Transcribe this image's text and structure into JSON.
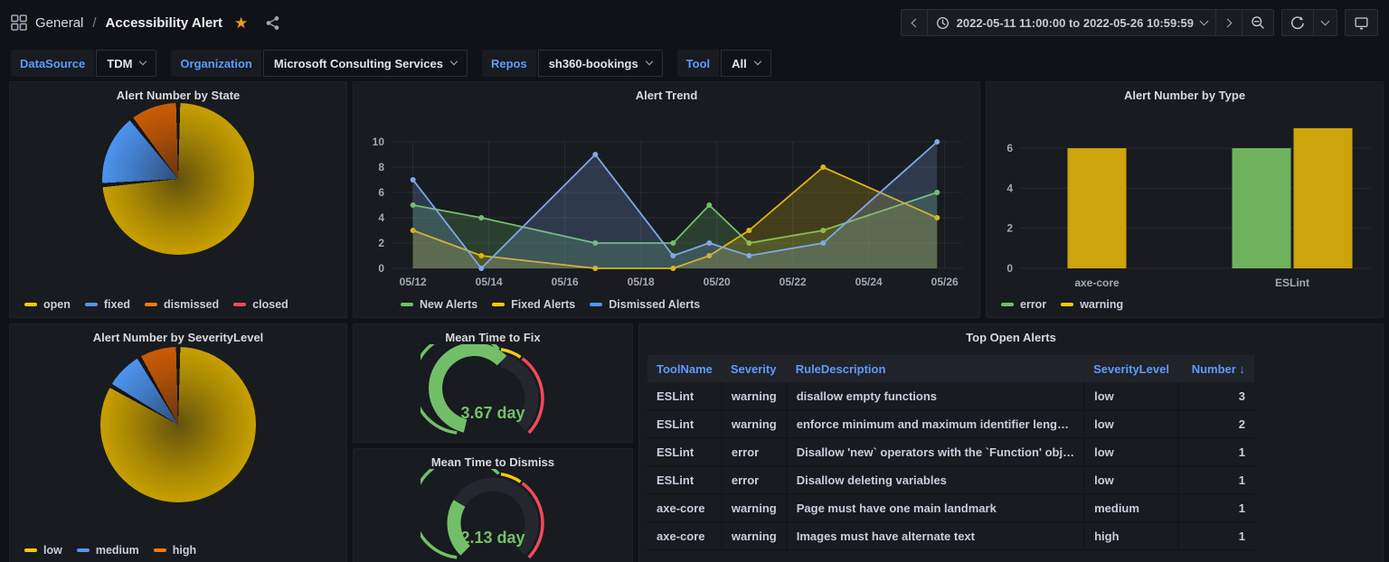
{
  "nav": {
    "breadcrumb": {
      "section": "General",
      "separator": "/",
      "page": "Accessibility Alert"
    },
    "time_range": "2022-05-11 11:00:00 to 2022-05-26 10:59:59",
    "icons": [
      "apps-grid",
      "star",
      "share",
      "chevron-left",
      "clock",
      "chevron-down",
      "chevron-right",
      "zoom-out",
      "refresh",
      "kiosk-monitor"
    ]
  },
  "filters": [
    {
      "label": "DataSource",
      "value": "TDM"
    },
    {
      "label": "Organization",
      "value": "Microsoft Consulting Services"
    },
    {
      "label": "Repos",
      "value": "sh360-bookings"
    },
    {
      "label": "Tool",
      "value": "All"
    }
  ],
  "panels": {
    "pie_state": {
      "title": "Alert Number by State",
      "legend": [
        {
          "label": "open",
          "color": "#F2CC0C"
        },
        {
          "label": "fixed",
          "color": "#5794F2"
        },
        {
          "label": "dismissed",
          "color": "#FF780A"
        },
        {
          "label": "closed",
          "color": "#F2495C"
        }
      ]
    },
    "trend": {
      "title": "Alert Trend",
      "legend": [
        {
          "label": "New Alerts",
          "color": "#73BF69"
        },
        {
          "label": "Fixed Alerts",
          "color": "#F2CC0C"
        },
        {
          "label": "Dismissed Alerts",
          "color": "#5794F2"
        }
      ]
    },
    "bar_type": {
      "title": "Alert Number by Type",
      "legend": [
        {
          "label": "error",
          "color": "#73BF69"
        },
        {
          "label": "warning",
          "color": "#F2CC0C"
        }
      ]
    },
    "pie_severity": {
      "title": "Alert Number by SeverityLevel",
      "legend": [
        {
          "label": "low",
          "color": "#F2CC0C"
        },
        {
          "label": "medium",
          "color": "#5794F2"
        },
        {
          "label": "high",
          "color": "#FF780A"
        }
      ]
    },
    "gauge_fix": {
      "title": "Mean Time to Fix"
    },
    "gauge_dismiss": {
      "title": "Mean Time to Dismiss"
    },
    "table": {
      "title": "Top Open Alerts",
      "headers": {
        "tool": "ToolName",
        "severity": "Severity",
        "rule": "RuleDescription",
        "severity_level": "SeverityLevel",
        "number": "Number ↓"
      },
      "rows": [
        {
          "tool": "ESLint",
          "severity": "warning",
          "rule": "disallow empty functions",
          "severity_level": "low",
          "number": "3"
        },
        {
          "tool": "ESLint",
          "severity": "warning",
          "rule": "enforce minimum and maximum identifier leng…",
          "severity_level": "low",
          "number": "2"
        },
        {
          "tool": "ESLint",
          "severity": "error",
          "rule": "Disallow 'new` operators with the `Function' obj…",
          "severity_level": "low",
          "number": "1"
        },
        {
          "tool": "ESLint",
          "severity": "error",
          "rule": "Disallow deleting variables",
          "severity_level": "low",
          "number": "1"
        },
        {
          "tool": "axe-core",
          "severity": "warning",
          "rule": "Page must have one main landmark",
          "severity_level": "medium",
          "number": "1"
        },
        {
          "tool": "axe-core",
          "severity": "warning",
          "rule": "Images must have alternate text",
          "severity_level": "high",
          "number": "1"
        }
      ]
    }
  },
  "chart_data": [
    {
      "id": "pie_state",
      "type": "pie",
      "title": "Alert Number by State",
      "labels": [
        "open",
        "fixed",
        "dismissed",
        "closed"
      ],
      "values": [
        14,
        3,
        2,
        0
      ],
      "colors": [
        "#C9A100",
        "#4D94F0",
        "#CE5C05",
        "#F2495C"
      ],
      "legend_position": "bottom"
    },
    {
      "id": "trend",
      "type": "line",
      "title": "Alert Trend",
      "x_domain_days": [
        11.46,
        26.46
      ],
      "x_tick_days": [
        12,
        14,
        16,
        18,
        20,
        22,
        24,
        26
      ],
      "x_tick_labels": [
        "05/12",
        "05/14",
        "05/16",
        "05/18",
        "05/20",
        "05/22",
        "05/24",
        "05/26"
      ],
      "x_days": [
        12,
        13.8,
        16.8,
        18.85,
        19.8,
        20.85,
        22.8,
        25.8
      ],
      "ylim": [
        0,
        10
      ],
      "y_ticks": [
        0,
        2,
        4,
        6,
        8,
        10
      ],
      "grid": true,
      "legend_position": "bottom",
      "series": [
        {
          "name": "New Alerts",
          "color": "#73BF69",
          "values": [
            5,
            4,
            2,
            2,
            5,
            2,
            3,
            6
          ]
        },
        {
          "name": "Fixed Alerts",
          "color": "#E0B50F",
          "values": [
            3,
            1,
            0,
            0,
            1,
            3,
            8,
            4
          ]
        },
        {
          "name": "Dismissed Alerts",
          "color": "#7EA9E8",
          "values": [
            7,
            0,
            9,
            1,
            2,
            1,
            2,
            10
          ]
        }
      ]
    },
    {
      "id": "bar_type",
      "type": "bar",
      "title": "Alert Number by Type",
      "categories": [
        "axe-core",
        "ESLint"
      ],
      "ylim": [
        0,
        7.8
      ],
      "y_ticks": [
        0,
        2,
        4,
        6
      ],
      "legend_position": "bottom",
      "series": [
        {
          "name": "error",
          "color": "#6FB25D",
          "values": [
            0,
            6
          ]
        },
        {
          "name": "warning",
          "color": "#CDA40C",
          "values": [
            6,
            7
          ]
        }
      ]
    },
    {
      "id": "pie_severity",
      "type": "pie",
      "title": "Alert Number by SeverityLevel",
      "labels": [
        "low",
        "medium",
        "high"
      ],
      "values": [
        10,
        1,
        1
      ],
      "colors": [
        "#C9A100",
        "#4D94F0",
        "#CE5C05"
      ],
      "legend_position": "bottom"
    },
    {
      "id": "gauge_fix",
      "type": "gauge",
      "title": "Mean Time to Fix",
      "value": 3.67,
      "unit": "day",
      "display": "3.67 day",
      "percent": 55,
      "thresholds": [
        {
          "to_percent": 53,
          "color": "#73BF69"
        },
        {
          "to_percent": 63,
          "color": "#F2CC0C"
        },
        {
          "to_percent": 100,
          "color": "#F2495C"
        }
      ]
    },
    {
      "id": "gauge_dismiss",
      "type": "gauge",
      "title": "Mean Time to Dismiss",
      "value": 2.13,
      "unit": "day",
      "display": "2.13 day",
      "percent": 28,
      "thresholds": [
        {
          "to_percent": 53,
          "color": "#73BF69"
        },
        {
          "to_percent": 63,
          "color": "#F2CC0C"
        },
        {
          "to_percent": 100,
          "color": "#F2495C"
        }
      ]
    }
  ]
}
